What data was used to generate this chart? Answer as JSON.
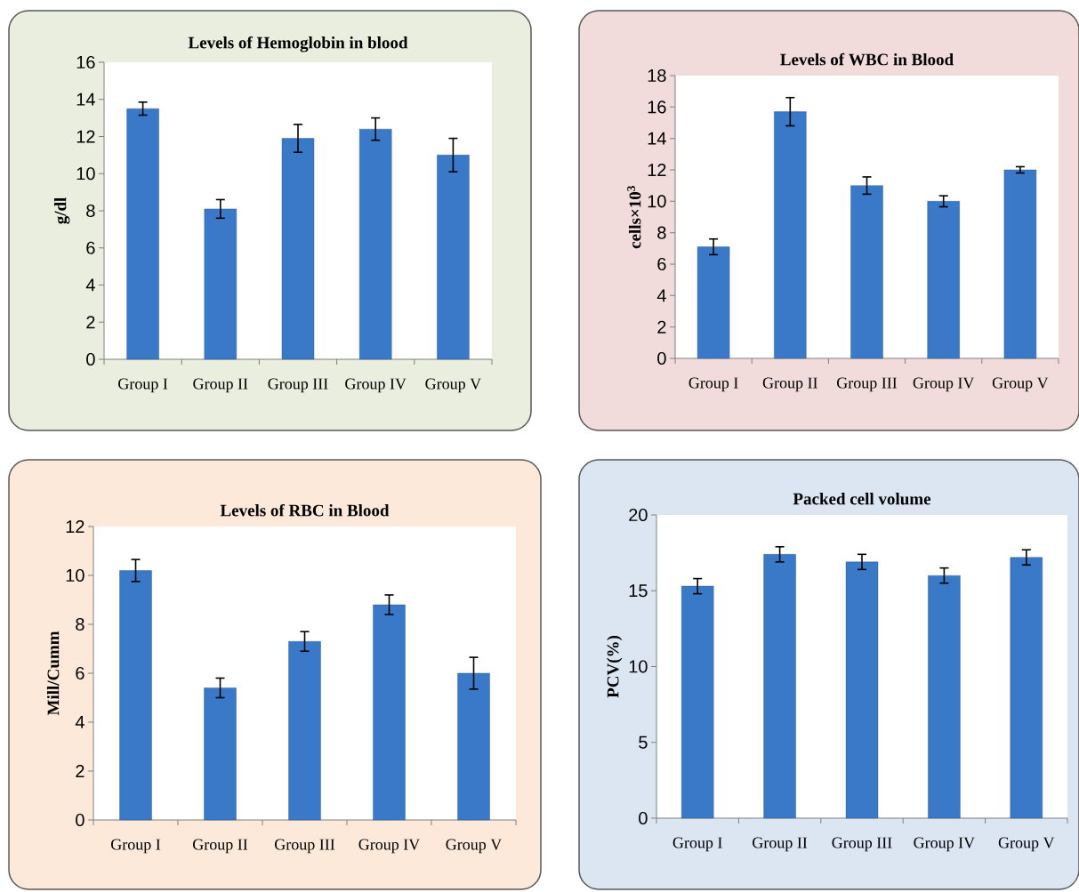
{
  "chart_data": [
    {
      "type": "bar",
      "title": "Levels of Hemoglobin in blood",
      "ylabel": "g/dl",
      "categories": [
        "Group I",
        "Group II",
        "Group III",
        "Group IV",
        "Group V"
      ],
      "values": [
        13.5,
        8.1,
        11.9,
        12.4,
        11.0
      ],
      "errors": [
        0.35,
        0.5,
        0.75,
        0.6,
        0.9
      ],
      "color": "#3a78c8",
      "ylim": [
        0,
        16
      ],
      "yticks": [
        0,
        2,
        4,
        6,
        8,
        10,
        12,
        14,
        16
      ],
      "grid": false
    },
    {
      "type": "bar",
      "title": "Levels of WBC in Blood",
      "ylabel": "cells×10$^{3}$",
      "categories": [
        "Group I",
        "Group II",
        "Group III",
        "Group IV",
        "Group V"
      ],
      "values": [
        7.1,
        15.7,
        11.0,
        10.0,
        12.0
      ],
      "errors": [
        0.5,
        0.9,
        0.55,
        0.35,
        0.2
      ],
      "color": "#3a78c8",
      "ylim": [
        0,
        18
      ],
      "yticks": [
        0,
        2,
        4,
        6,
        8,
        10,
        12,
        14,
        16,
        18
      ],
      "grid": false
    },
    {
      "type": "bar",
      "title": "Levels of RBC in Blood",
      "ylabel": "Mill/Cumm",
      "categories": [
        "Group I",
        "Group II",
        "Group III",
        "Group IV",
        "Group V"
      ],
      "values": [
        10.2,
        5.4,
        7.3,
        8.8,
        6.0
      ],
      "errors": [
        0.45,
        0.4,
        0.4,
        0.4,
        0.65
      ],
      "color": "#3a78c8",
      "ylim": [
        0,
        12
      ],
      "yticks": [
        0,
        2,
        4,
        6,
        8,
        10,
        12
      ],
      "grid": false
    },
    {
      "type": "bar",
      "title": "Packed cell volume",
      "ylabel": "PCV(%)",
      "categories": [
        "Group I",
        "Group II",
        "Group III",
        "Group IV",
        "Group V"
      ],
      "values": [
        15.3,
        17.4,
        16.9,
        16.0,
        17.2
      ],
      "errors": [
        0.5,
        0.5,
        0.5,
        0.5,
        0.5
      ],
      "color": "#3a78c8",
      "ylim": [
        0,
        20
      ],
      "yticks": [
        0,
        5,
        10,
        15,
        20
      ],
      "grid": false
    }
  ]
}
